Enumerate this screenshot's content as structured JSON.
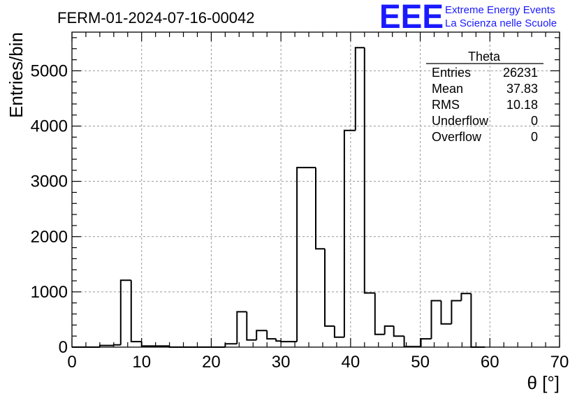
{
  "header": {
    "run_title": "FERM-01-2024-07-16-00042",
    "logo_text": "EEE",
    "logo_line1": "Extreme Energy Events",
    "logo_line2": "La Scienza nelle Scuole",
    "brand_color": "#1a1aff"
  },
  "stats_box": {
    "title": "Theta",
    "rows": [
      {
        "label": "Entries",
        "value": "26231"
      },
      {
        "label": "Mean",
        "value": "37.83"
      },
      {
        "label": "RMS",
        "value": "10.18"
      },
      {
        "label": "Underflow",
        "value": "0"
      },
      {
        "label": "Overflow",
        "value": "0"
      }
    ]
  },
  "chart_data": {
    "type": "bar",
    "style": "step-histogram",
    "xlabel": "θ [°]",
    "ylabel": "Entries/bin",
    "xlim": [
      0,
      70
    ],
    "ylim": [
      0,
      5700
    ],
    "grid": true,
    "bin_width": 2,
    "x_ticks": [
      0,
      10,
      20,
      30,
      40,
      50,
      60,
      70
    ],
    "y_ticks": [
      0,
      1000,
      2000,
      3000,
      4000,
      5000
    ],
    "bins": [
      {
        "x": 0,
        "value": 0
      },
      {
        "x": 2,
        "value": 0
      },
      {
        "x": 4,
        "value": 30
      },
      {
        "x": 6,
        "value": 40
      },
      {
        "x": 7,
        "value": 1210
      },
      {
        "x": 8.5,
        "value": 100
      },
      {
        "x": 10,
        "value": 20
      },
      {
        "x": 12,
        "value": 20
      },
      {
        "x": 14,
        "value": 0
      },
      {
        "x": 16,
        "value": 0
      },
      {
        "x": 18,
        "value": 0
      },
      {
        "x": 20,
        "value": 0
      },
      {
        "x": 22,
        "value": 60
      },
      {
        "x": 23.7,
        "value": 640
      },
      {
        "x": 25.1,
        "value": 130
      },
      {
        "x": 26.5,
        "value": 300
      },
      {
        "x": 28,
        "value": 150
      },
      {
        "x": 29.3,
        "value": 110
      },
      {
        "x": 30,
        "value": 100
      },
      {
        "x": 32.3,
        "value": 3250
      },
      {
        "x": 35,
        "value": 1780
      },
      {
        "x": 36.3,
        "value": 380
      },
      {
        "x": 37.7,
        "value": 180
      },
      {
        "x": 39.1,
        "value": 3920
      },
      {
        "x": 40.7,
        "value": 5420
      },
      {
        "x": 42,
        "value": 980
      },
      {
        "x": 43.5,
        "value": 230
      },
      {
        "x": 44.9,
        "value": 380
      },
      {
        "x": 46.2,
        "value": 200
      },
      {
        "x": 47.7,
        "value": 10
      },
      {
        "x": 50.1,
        "value": 150
      },
      {
        "x": 51.6,
        "value": 840
      },
      {
        "x": 53,
        "value": 420
      },
      {
        "x": 54.5,
        "value": 840
      },
      {
        "x": 55.9,
        "value": 970
      },
      {
        "x": 57.3,
        "value": 0
      }
    ]
  }
}
